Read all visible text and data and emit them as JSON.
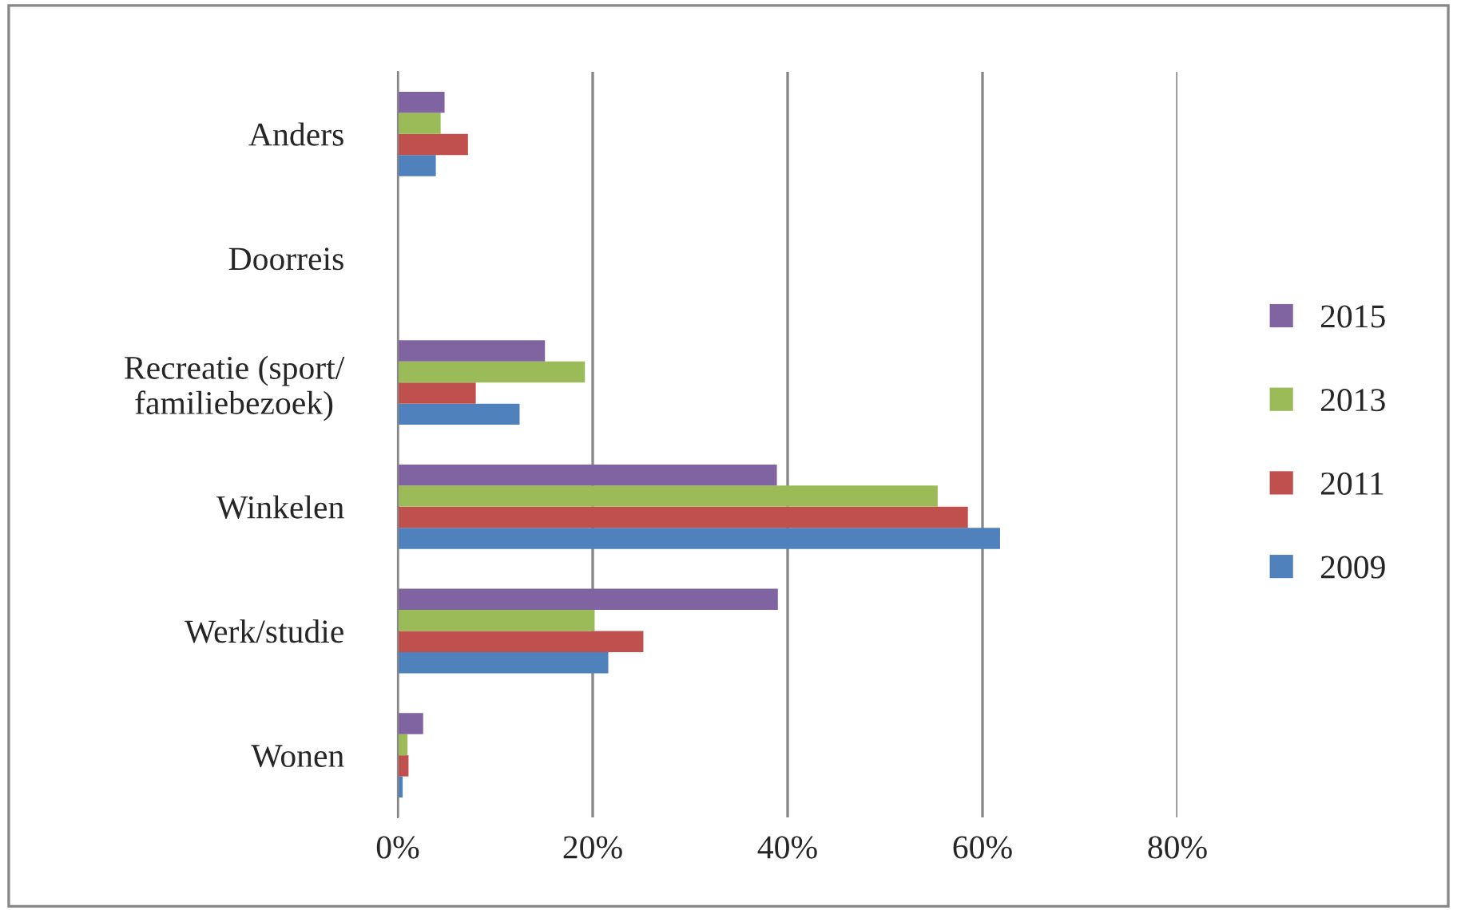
{
  "chart_data": {
    "type": "bar",
    "orientation": "horizontal",
    "categories": [
      "Anders",
      "Doorreis",
      "Recreatie (sport/\nfamiliebezoek)",
      "Winkelen",
      "Werk/studie",
      "Wonen"
    ],
    "series": [
      {
        "name": "2009",
        "color": "#4f81bd",
        "values": [
          3.9,
          0,
          12.5,
          61.8,
          21.6,
          0.5
        ]
      },
      {
        "name": "2011",
        "color": "#c0504d",
        "values": [
          7.2,
          0,
          8.0,
          58.5,
          25.2,
          1.1
        ]
      },
      {
        "name": "2013",
        "color": "#9bbb59",
        "values": [
          4.4,
          0,
          19.2,
          55.4,
          20.2,
          1.0
        ]
      },
      {
        "name": "2015",
        "color": "#8064a2",
        "values": [
          4.8,
          0,
          15.1,
          38.9,
          39.0,
          2.6
        ]
      }
    ],
    "xlim": [
      0,
      80
    ],
    "xticks": [
      {
        "value": 0,
        "label": "0%"
      },
      {
        "value": 20,
        "label": "20%"
      },
      {
        "value": 40,
        "label": "40%"
      },
      {
        "value": 60,
        "label": "60%"
      },
      {
        "value": 80,
        "label": "80%"
      }
    ],
    "grid": "x",
    "legend": "right"
  }
}
